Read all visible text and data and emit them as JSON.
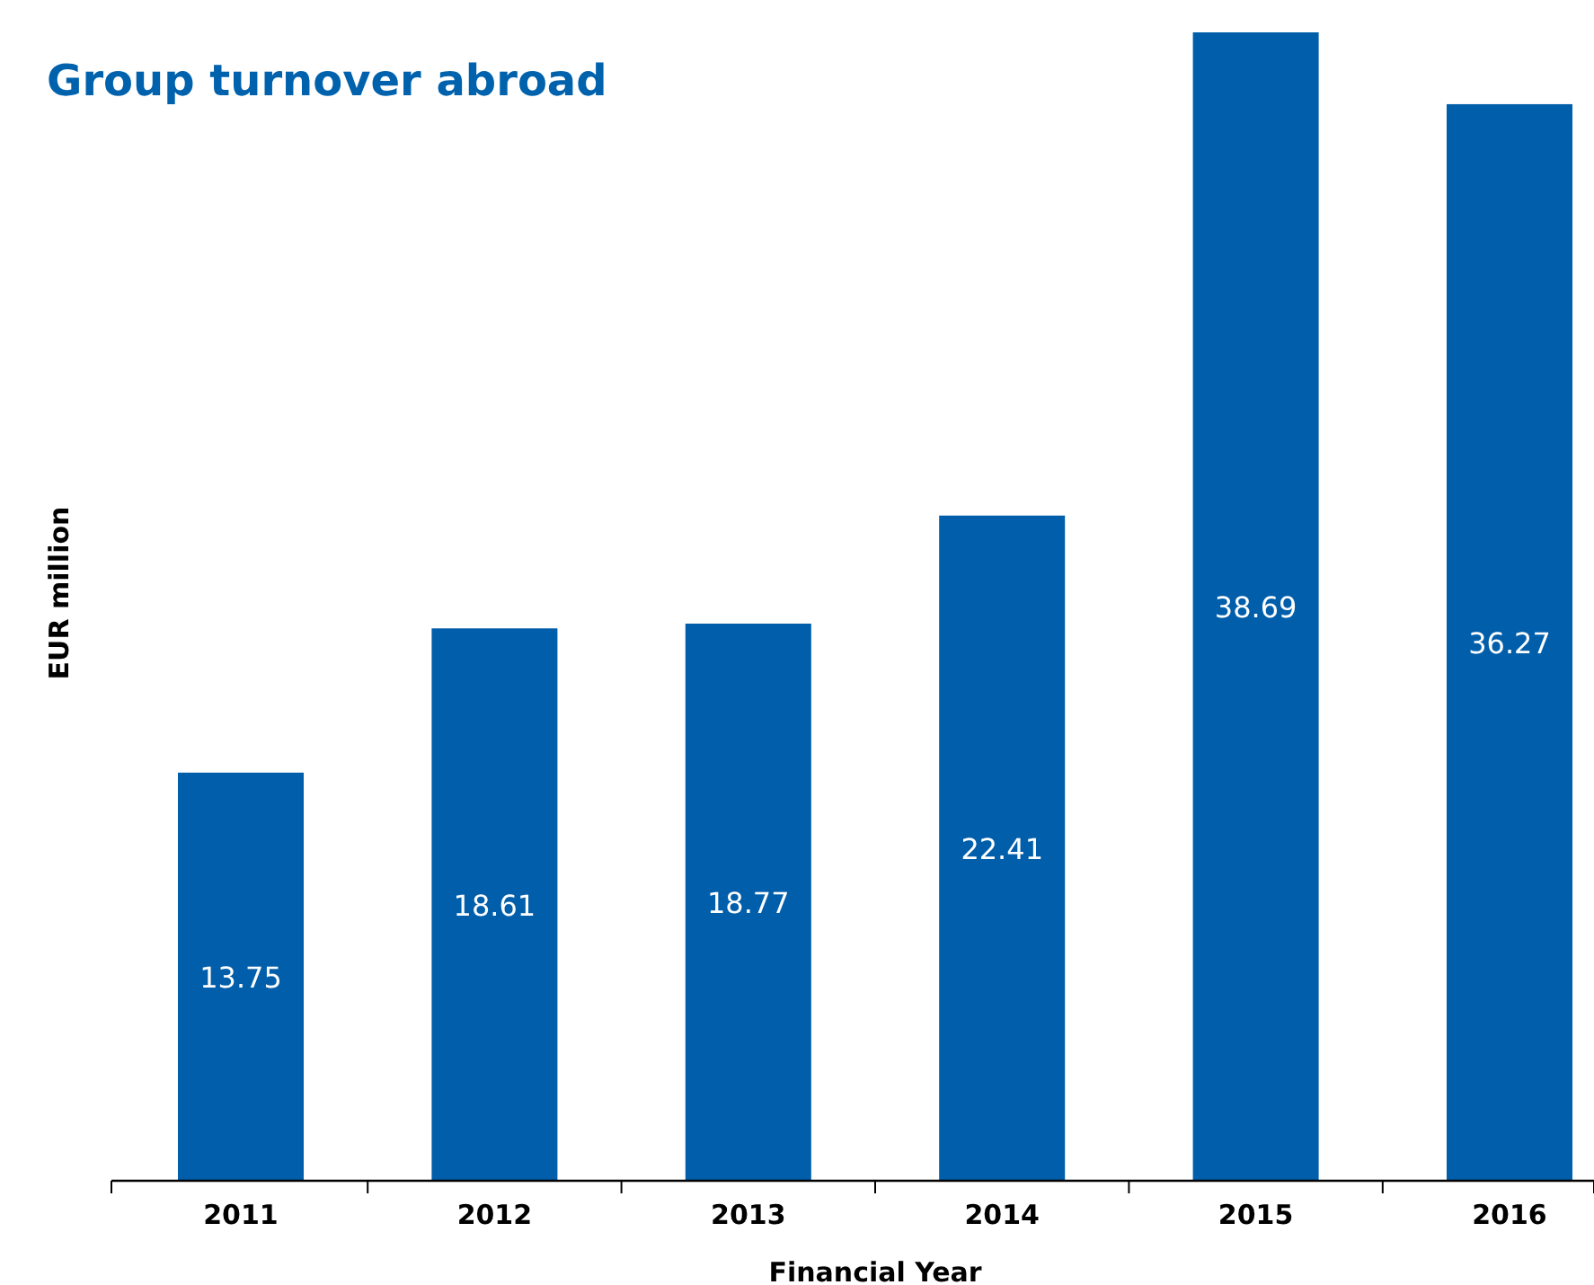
{
  "chart_data": {
    "type": "bar",
    "title": "Group turnover abroad",
    "xlabel": "Financial Year",
    "ylabel": "EUR million",
    "categories": [
      "2011",
      "2012",
      "2013",
      "2014",
      "2015",
      "2016"
    ],
    "values": [
      13.75,
      18.61,
      18.77,
      22.41,
      38.69,
      36.27
    ],
    "color": "#005eaa",
    "data_labels": true
  }
}
